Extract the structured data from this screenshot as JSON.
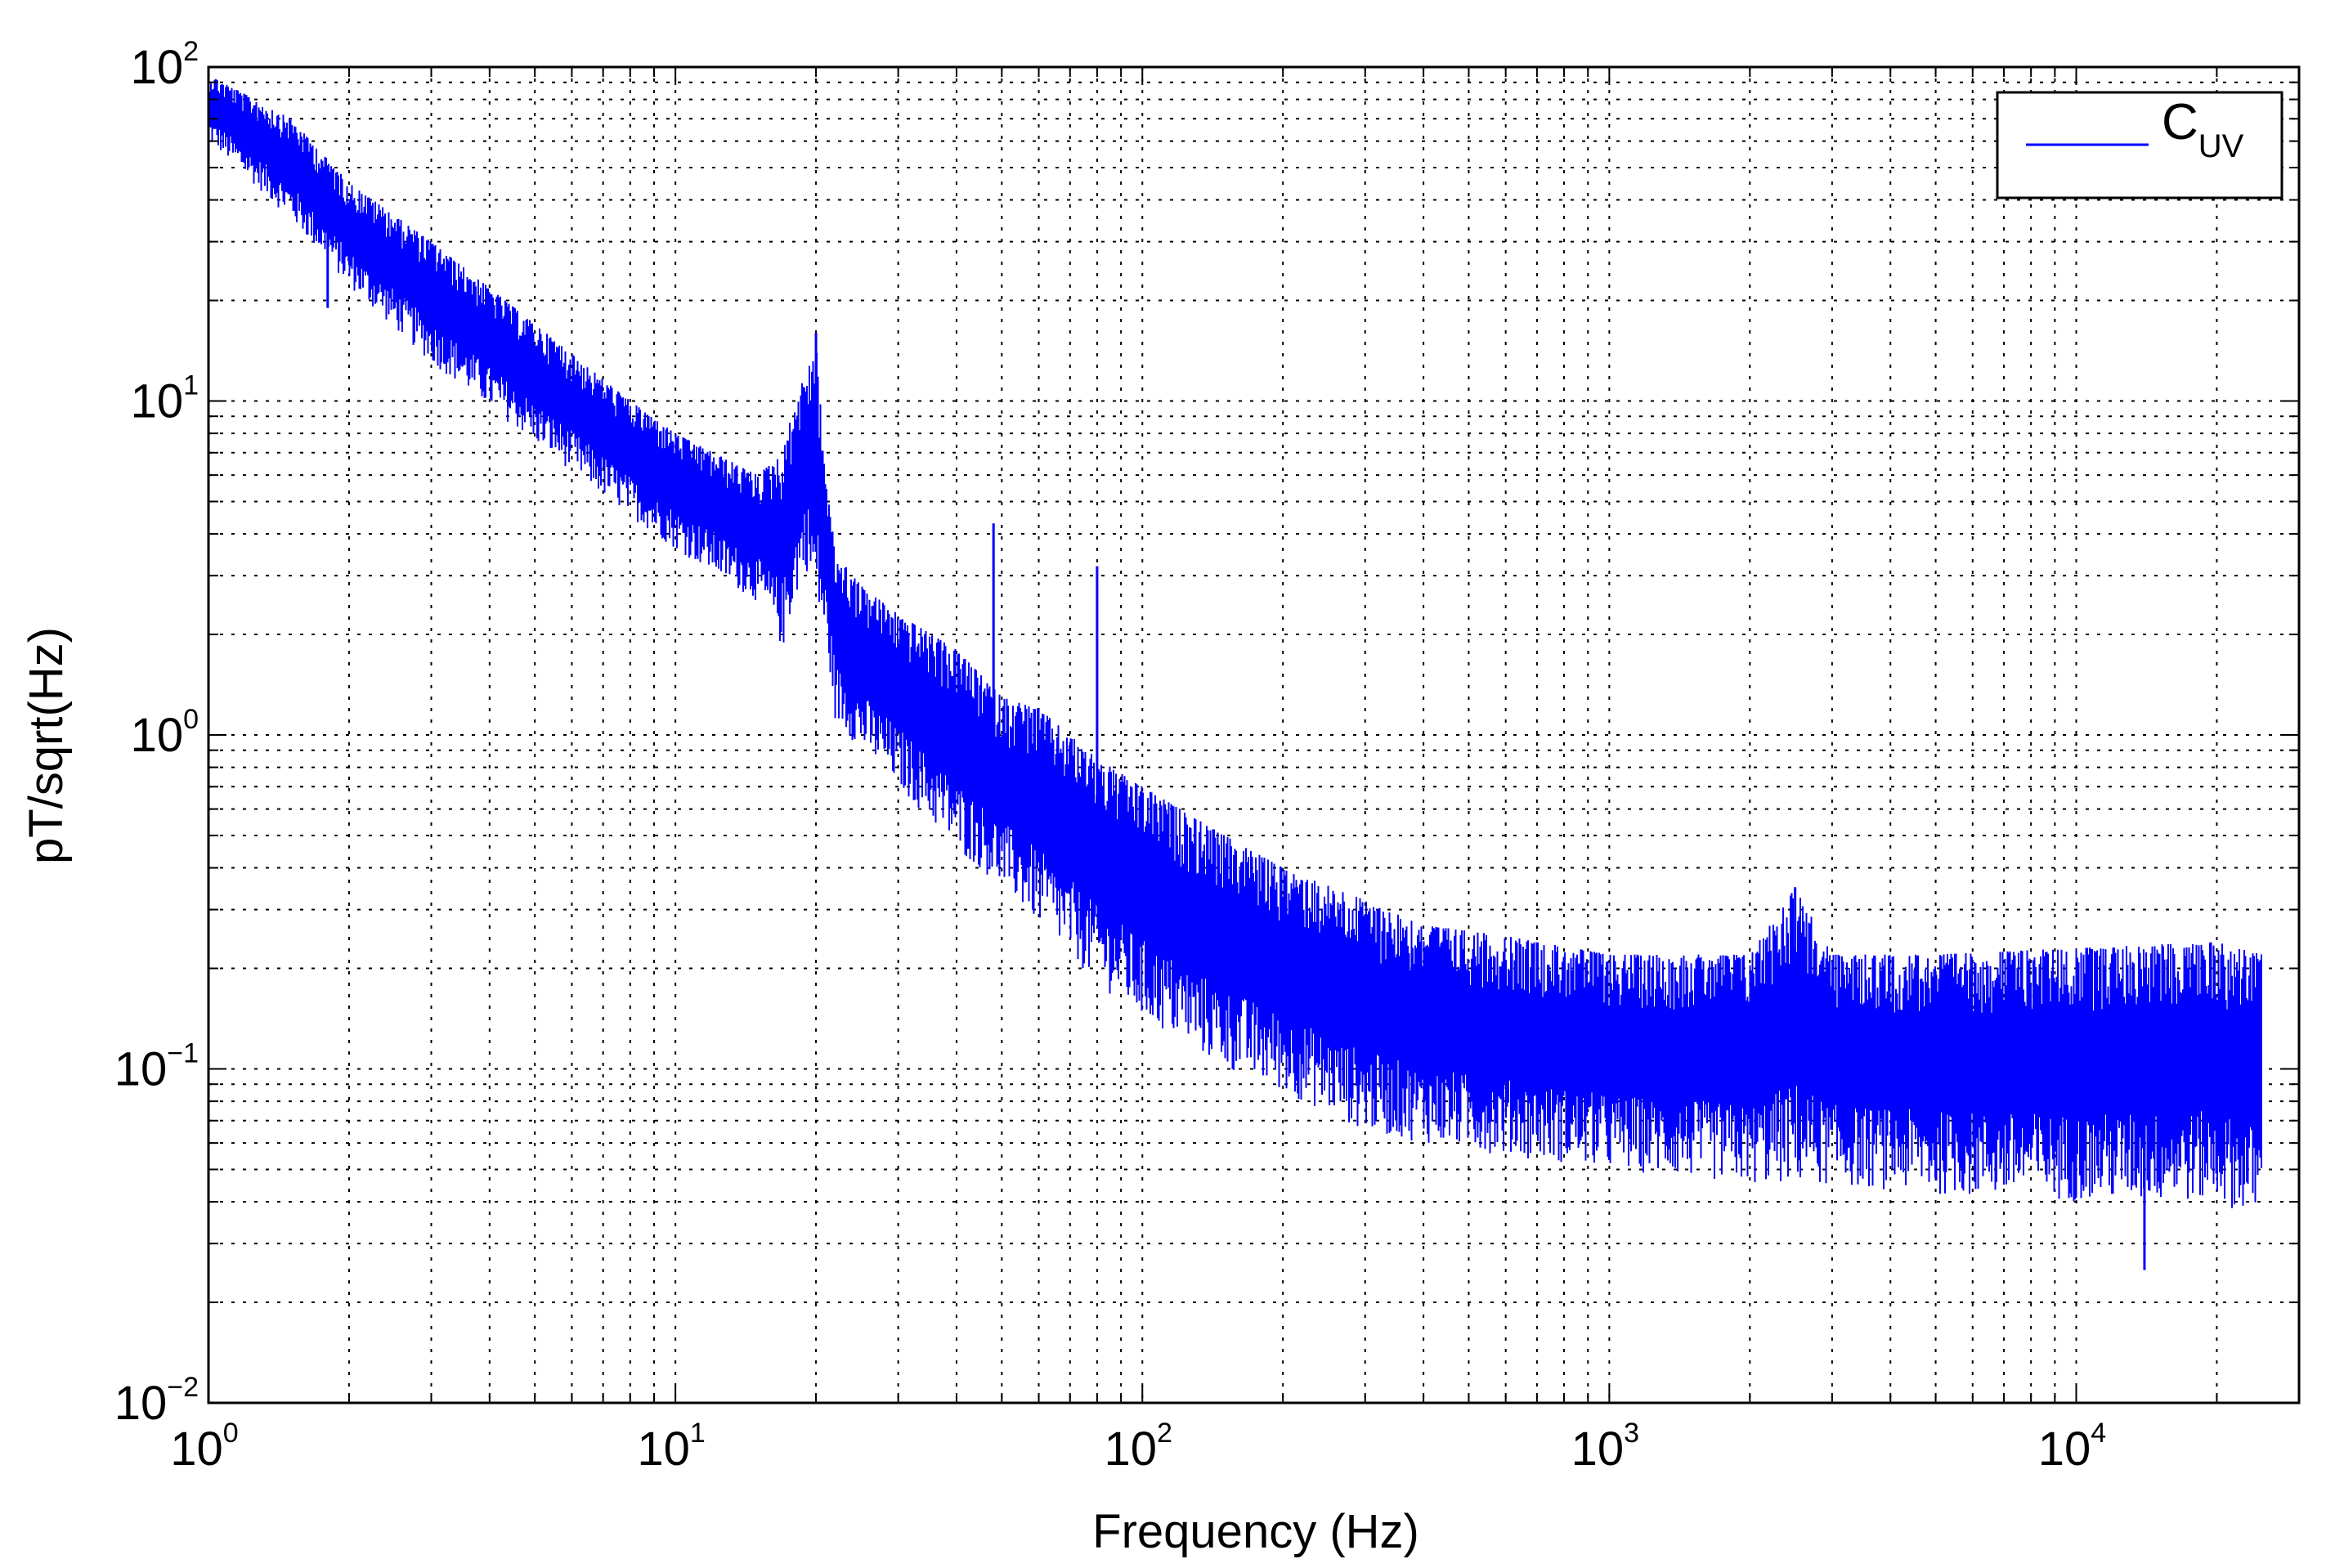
{
  "chart_data": {
    "type": "line",
    "title": "",
    "xlabel": "Frequency (Hz)",
    "ylabel": "pT/sqrt(Hz)",
    "xscale": "log",
    "yscale": "log",
    "xlim": [
      1,
      30000
    ],
    "ylim": [
      0.01,
      100
    ],
    "grid": true,
    "grid_style": "dotted",
    "legend_position": "top-right",
    "x_ticks": [
      {
        "base": "10",
        "exp": "0"
      },
      {
        "base": "10",
        "exp": "1"
      },
      {
        "base": "10",
        "exp": "2"
      },
      {
        "base": "10",
        "exp": "3"
      },
      {
        "base": "10",
        "exp": "4"
      }
    ],
    "y_ticks": [
      {
        "base": "10",
        "exp": "2"
      },
      {
        "base": "10",
        "exp": "1"
      },
      {
        "base": "10",
        "exp": "0"
      },
      {
        "base": "10",
        "exp": "−1"
      },
      {
        "base": "10",
        "exp": "−2"
      }
    ],
    "series": [
      {
        "name": "C",
        "name_subscript": "UV",
        "color": "#0000ff",
        "upper_envelope": {
          "x": [
            1,
            1.5,
            2,
            3,
            5,
            8,
            10,
            15,
            17,
            18,
            19,
            20,
            21,
            22,
            25,
            30,
            40,
            50,
            60,
            80,
            100,
            150,
            200,
            300,
            400,
            600,
            1000,
            2000,
            2500,
            3000,
            5000,
            10000,
            20000,
            25000
          ],
          "y": [
            95,
            70,
            45,
            30,
            17,
            10,
            8,
            6,
            7,
            10,
            12,
            15,
            6,
            3.5,
            2.8,
            2.3,
            1.8,
            1.3,
            1.2,
            0.85,
            0.7,
            0.5,
            0.4,
            0.32,
            0.27,
            0.25,
            0.22,
            0.22,
            0.35,
            0.22,
            0.22,
            0.23,
            0.24,
            0.22
          ]
        },
        "lower_envelope": {
          "x": [
            1,
            1.5,
            2,
            3,
            5,
            8,
            10,
            15,
            17,
            18,
            19,
            20,
            21,
            22,
            25,
            30,
            40,
            50,
            60,
            80,
            100,
            150,
            200,
            300,
            400,
            600,
            1000,
            2000,
            2500,
            3000,
            5000,
            10000,
            20000,
            25000
          ],
          "y": [
            60,
            35,
            22,
            13,
            7.5,
            4.5,
            3.6,
            2.5,
            1.8,
            2.5,
            3.2,
            2.4,
            1.9,
            1.1,
            0.9,
            0.7,
            0.45,
            0.35,
            0.27,
            0.18,
            0.14,
            0.1,
            0.085,
            0.065,
            0.06,
            0.055,
            0.05,
            0.045,
            0.045,
            0.045,
            0.042,
            0.04,
            0.04,
            0.035
          ]
        },
        "notable_values": [
          {
            "x": 1.8,
            "y": 19,
            "note": "dip"
          },
          {
            "x": 20,
            "y": 16,
            "note": "peak"
          },
          {
            "x": 48,
            "y": 4.3,
            "note": "spike"
          },
          {
            "x": 80,
            "y": 3.2,
            "note": "spike"
          },
          {
            "x": 2500,
            "y": 0.35,
            "note": "spike"
          },
          {
            "x": 14000,
            "y": 0.025,
            "note": "dip"
          }
        ]
      }
    ]
  }
}
